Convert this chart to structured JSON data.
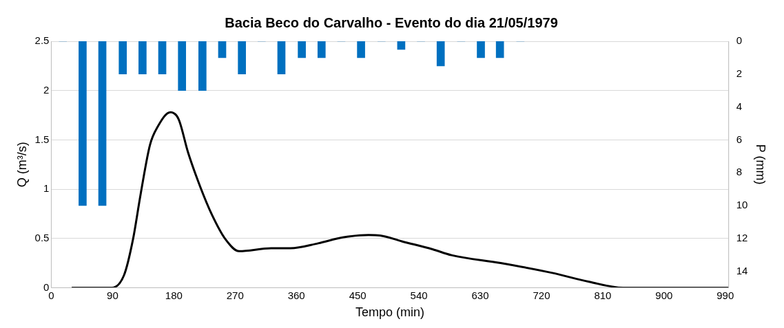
{
  "chart_data": {
    "type": "line",
    "title": "Bacia Beco do Carvalho - Evento do dia 21/05/1979",
    "xlabel": "Tempo (min)",
    "ylabel": "Q (m³/s)",
    "y2label": "P (mm)",
    "xlim": [
      0,
      995
    ],
    "xticks": [
      0,
      90,
      180,
      270,
      360,
      450,
      540,
      630,
      720,
      810,
      900,
      990
    ],
    "ylim": [
      0,
      2.5
    ],
    "yticks": [
      0,
      0.5,
      1,
      1.5,
      2,
      2.5
    ],
    "y2lim": [
      15,
      0
    ],
    "y2ticks": [
      0,
      2,
      4,
      6,
      8,
      10,
      12,
      14
    ],
    "grid": "y",
    "legend": false,
    "marker": "none",
    "series": [
      {
        "type": "bar",
        "axis": "y2",
        "color": "#0070c0",
        "x": [
          17,
          46,
          75,
          105,
          134,
          163,
          192,
          222,
          251,
          280,
          309,
          338,
          368,
          397,
          426,
          455,
          485,
          514,
          543,
          572,
          602,
          631,
          659,
          689
        ],
        "values": [
          0,
          10,
          10,
          2,
          2,
          2,
          3,
          3,
          1,
          2,
          0,
          2,
          1,
          1,
          0,
          1,
          0,
          0.5,
          0,
          1.5,
          0,
          1,
          1,
          0
        ]
      },
      {
        "axis": "y",
        "color": "#000000",
        "x": [
          30,
          65,
          89,
          107,
          120,
          131,
          145,
          156,
          175,
          187,
          201,
          219,
          236,
          256,
          276,
          323,
          351,
          392,
          428,
          466,
          483,
          515,
          560,
          588,
          660,
          736,
          790,
          840,
          900,
          995
        ],
        "values": [
          0,
          0,
          0,
          0.13,
          0.49,
          0.94,
          1.45,
          1.63,
          1.78,
          1.71,
          1.37,
          1.02,
          0.74,
          0.49,
          0.37,
          0.4,
          0.4,
          0.45,
          0.51,
          0.535,
          0.53,
          0.47,
          0.39,
          0.33,
          0.25,
          0.15,
          0.06,
          0,
          0,
          0
        ]
      }
    ]
  }
}
